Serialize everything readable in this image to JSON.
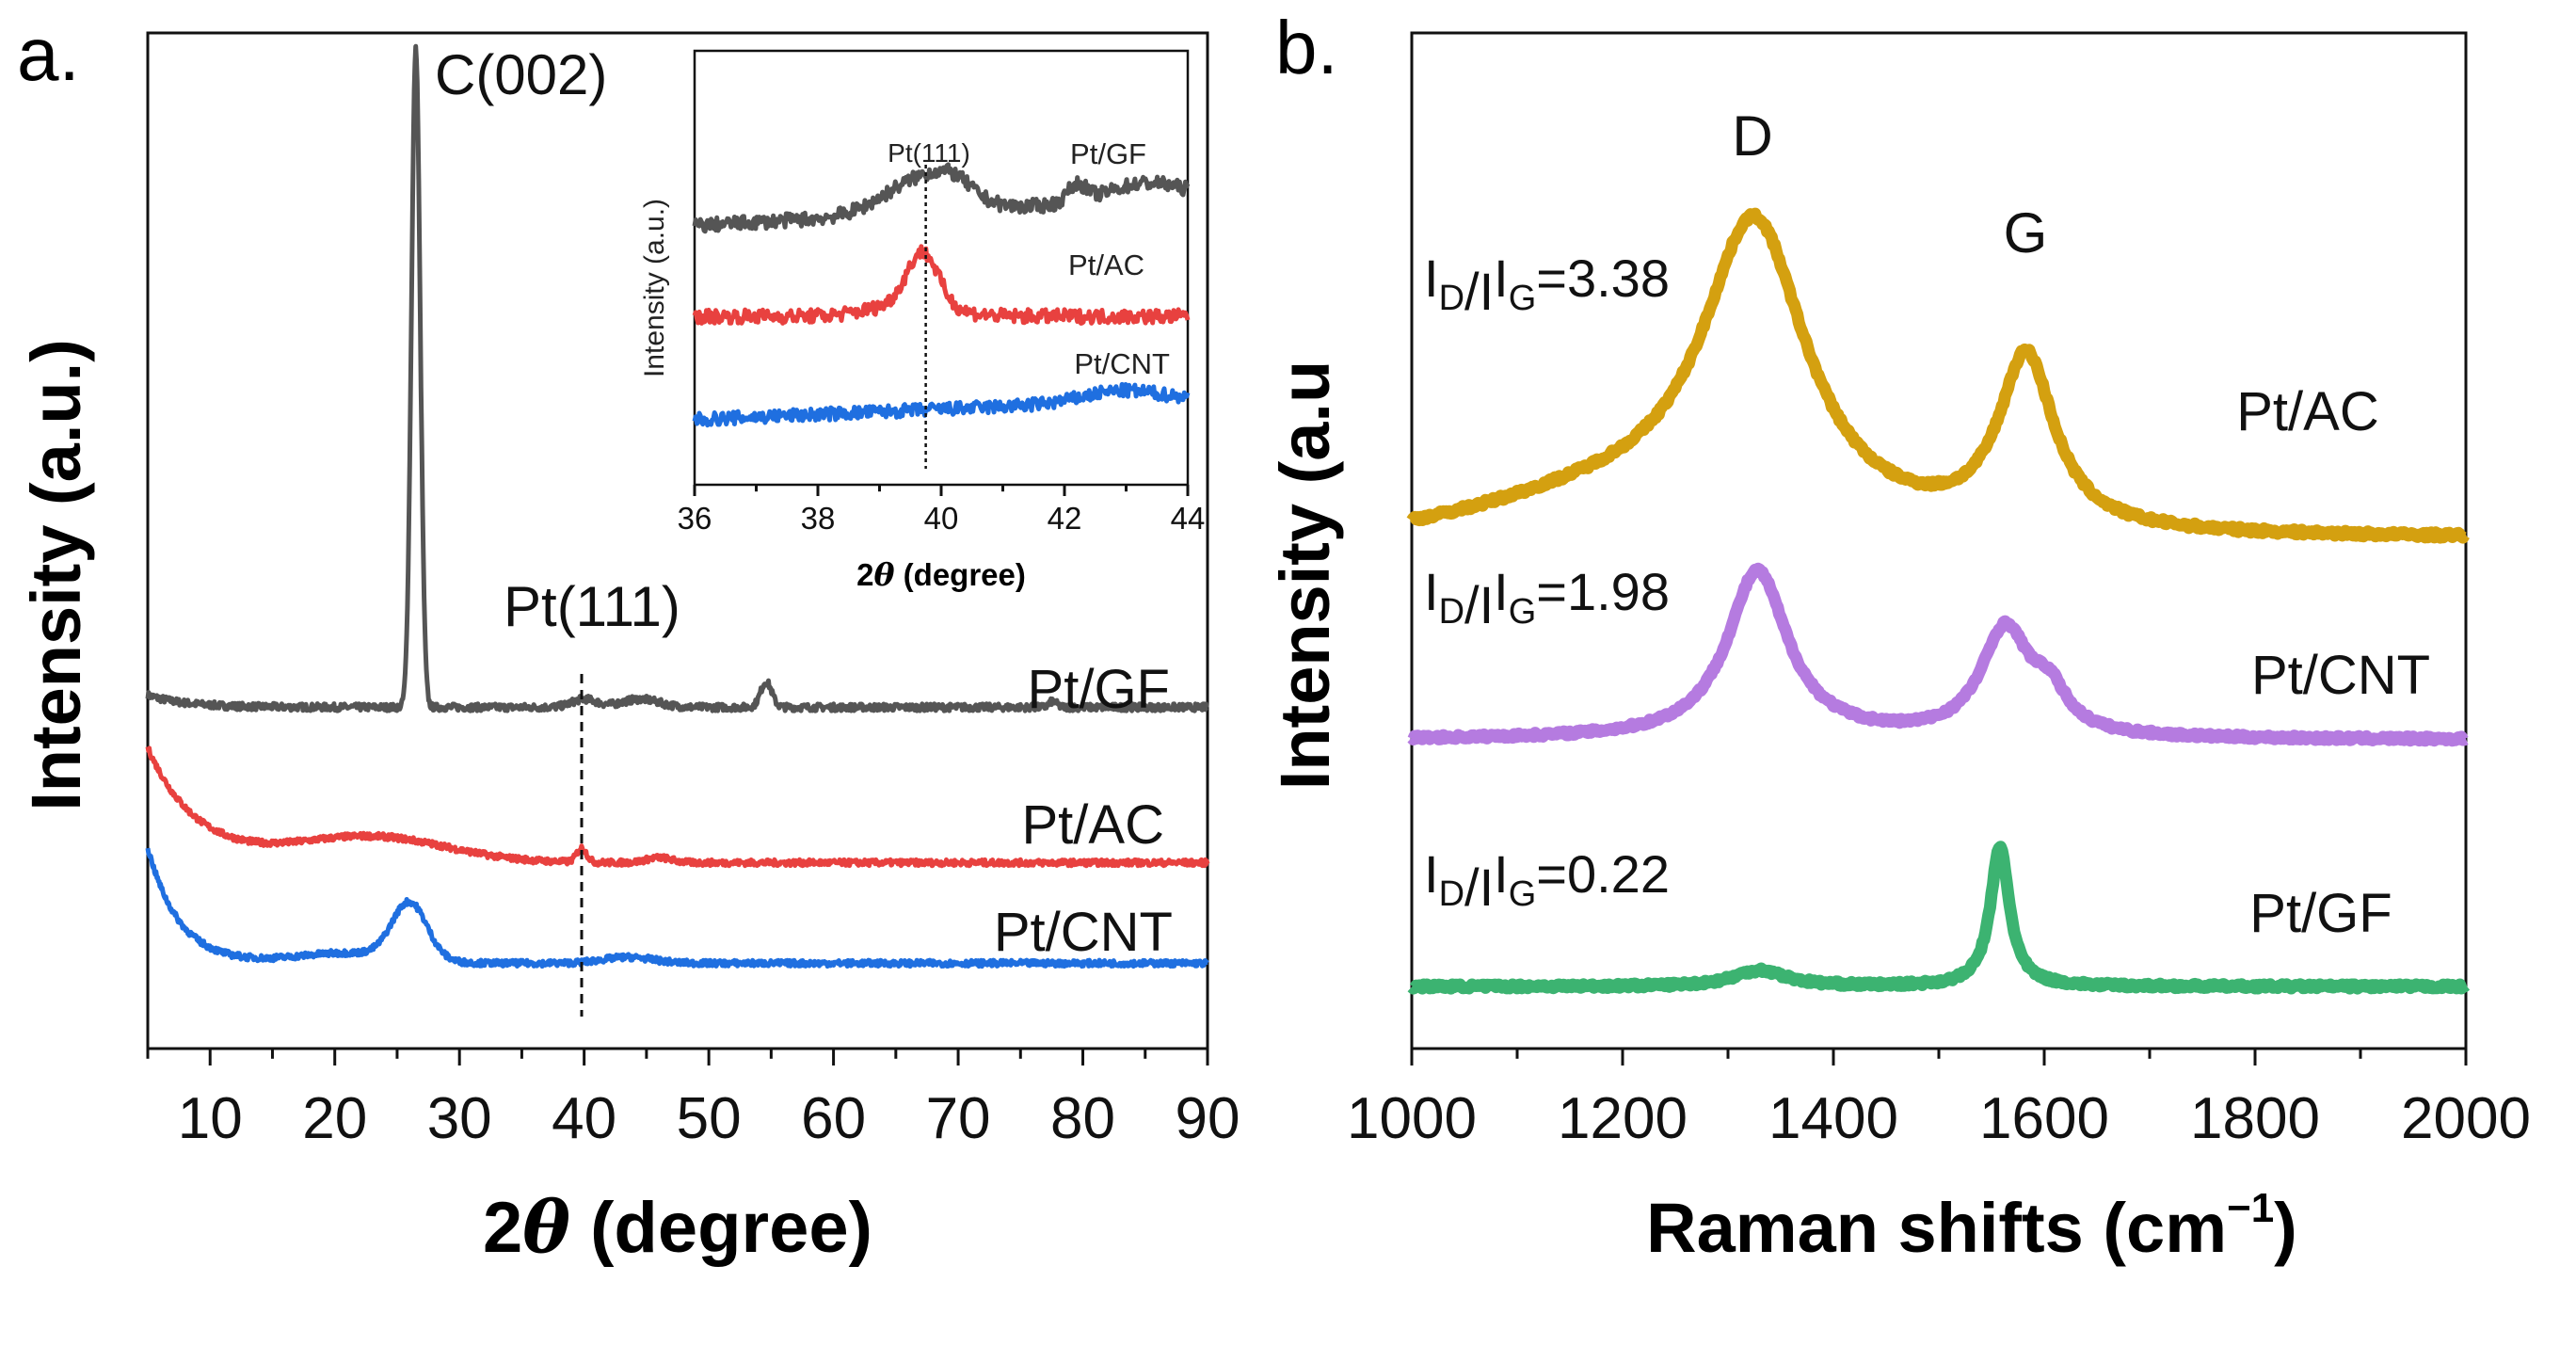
{
  "chart_data": [
    {
      "type": "line",
      "panel": "a.",
      "xlabel_prefix": "2",
      "xlabel_theta": "θ",
      "xlabel_suffix": " (degree)",
      "ylabel": "Intensity (a.u.)",
      "xlim": [
        5,
        90
      ],
      "ylim": [
        0,
        100
      ],
      "xticks": [
        10,
        20,
        30,
        40,
        50,
        60,
        70,
        80,
        90
      ],
      "annotations": {
        "c002": "C(002)",
        "pt111": "Pt(111)",
        "pt111_position": 39.8
      },
      "series": [
        {
          "name": "Pt/GF",
          "color": "#555555",
          "baseline": 33.6,
          "decay": [
            1.2,
            3
          ],
          "noise": 0.35,
          "peaks": [
            [
              26.5,
              64.8,
              0.35
            ],
            [
              40,
              0.8,
              1
            ],
            [
              44.5,
              0.8,
              1.5
            ],
            [
              54.6,
              2.5,
              0.45
            ],
            [
              77.6,
              0.6,
              0.3
            ]
          ]
        },
        {
          "name": "Pt/AC",
          "color": "#e8413f",
          "baseline": 18.3,
          "decay": [
            11.3,
            4
          ],
          "noise": 0.3,
          "peaks": [
            [
              23,
              2.5,
              6
            ],
            [
              39.8,
              1.4,
              0.4
            ],
            [
              46,
              0.5,
              1
            ]
          ]
        },
        {
          "name": "Pt/CNT",
          "color": "#1f6fe0",
          "baseline": 8.4,
          "decay": [
            11.4,
            2.5
          ],
          "noise": 0.3,
          "peaks": [
            [
              26,
              5.6,
              1.4
            ],
            [
              21,
              1.0,
              4
            ],
            [
              43.5,
              0.6,
              2
            ]
          ]
        }
      ],
      "inset": {
        "xlim": [
          36,
          44
        ],
        "ylim": [
          0,
          100
        ],
        "xticks": [
          36,
          38,
          40,
          42,
          44
        ],
        "xlabel_prefix": "2",
        "xlabel_theta": "θ",
        "xlabel_suffix": " (degree)",
        "ylabel": "Intensity (a.u.)",
        "annotation": "Pt(111)",
        "series": [
          {
            "name": "Pt/GF",
            "color": "#555555",
            "baseline": 59.7,
            "slope": 0.8,
            "noise": 1.6,
            "peaks": [
              [
                39.7,
                8,
                0.6
              ],
              [
                40.2,
                3,
                0.3
              ],
              [
                42.2,
                4,
                0.15
              ],
              [
                43.3,
                4,
                0.6
              ]
            ]
          },
          {
            "name": "Pt/AC",
            "color": "#e8413f",
            "baseline": 38.8,
            "slope": 0,
            "noise": 1.6,
            "peaks": [
              [
                39.7,
                12,
                0.25
              ],
              [
                39.5,
                3,
                0.6
              ]
            ]
          },
          {
            "name": "Pt/CNT",
            "color": "#1f6fe0",
            "baseline": 15,
            "slope": 0.6,
            "noise": 1.5,
            "peaks": [
              [
                42.9,
                2.5,
                0.6
              ]
            ]
          }
        ]
      }
    },
    {
      "type": "line",
      "panel": "b.",
      "xlabel": "Raman shifts (cm",
      "xlabel_sup": "−1",
      "xlabel_end": ")",
      "ylabel": "Intensity (a.u",
      "xlim": [
        1000,
        2000
      ],
      "ylim": [
        0,
        100
      ],
      "xticks": [
        1000,
        1200,
        1400,
        1600,
        1800,
        2000
      ],
      "annotations": {
        "d": "D",
        "g": "G",
        "ratio_I": "I",
        "ratio_D": "D",
        "ratio_G": "G"
      },
      "series": [
        {
          "name": "Pt/AC",
          "color": "#d4a010",
          "ratio": "=3.38",
          "baseline": 50.2,
          "noise": 0.25,
          "lorentz": [
            [
              1325,
              29.5,
              60
            ],
            [
              1583,
              17,
              32
            ]
          ],
          "gauss": [
            [
              1200,
              3.5,
              120
            ]
          ]
        },
        {
          "name": "Pt/CNT",
          "color": "#b57be0",
          "ratio": "=1.98",
          "baseline": 30.4,
          "noise": 0.2,
          "lorentz": [
            [
              1328,
              16.5,
              35
            ],
            [
              1563,
              10.5,
              28
            ],
            [
              1605,
              3.5,
              20
            ]
          ],
          "gauss": []
        },
        {
          "name": "Pt/GF",
          "color": "#3cb371",
          "ratio": "=0.22",
          "baseline": 6.1,
          "noise": 0.2,
          "lorentz": [
            [
              1330,
              1.6,
              30
            ],
            [
              1558,
              13.7,
              11
            ]
          ],
          "gauss": []
        }
      ]
    }
  ]
}
